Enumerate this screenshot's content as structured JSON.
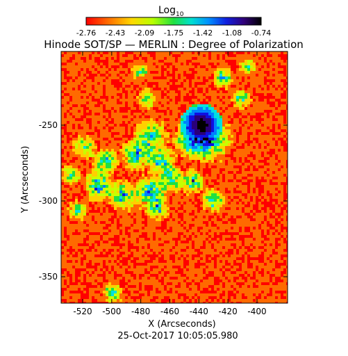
{
  "colorbar": {
    "label_main": "Log",
    "label_sub": "10",
    "ticks": [
      "-2.76",
      "-2.43",
      "-2.09",
      "-1.75",
      "-1.42",
      "-1.08",
      "-0.74"
    ]
  },
  "title": "Hinode SOT/SP — MERLIN : Degree of Polarization",
  "axes": {
    "xlabel": "X (Arcseconds)",
    "ylabel": "Y (Arcseconds)",
    "x_ticks": [
      "-520",
      "-500",
      "-480",
      "-460",
      "-440",
      "-420",
      "-400"
    ],
    "y_ticks": [
      "-250",
      "-300",
      "-350"
    ]
  },
  "timestamp": "25-Oct-2017 10:05:05.980",
  "colors": {
    "scale": [
      "#ff0000",
      "#ff6a00",
      "#ffd000",
      "#c8ff00",
      "#20e040",
      "#00e0e0",
      "#0080ff",
      "#1010e0",
      "#2a007a",
      "#000000"
    ]
  }
}
